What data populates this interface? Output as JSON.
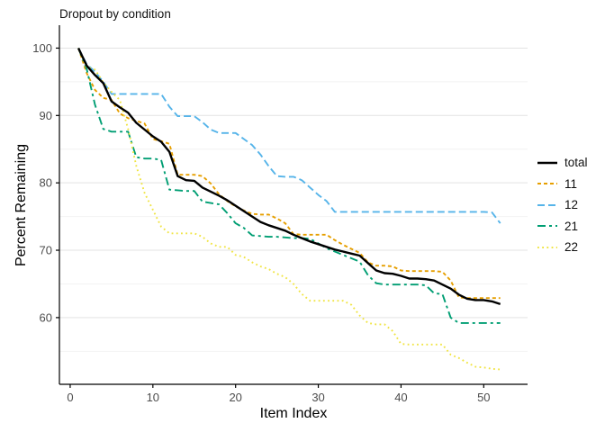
{
  "chart_data": {
    "type": "line",
    "title": "Dropout by condition",
    "xlabel": "Item Index",
    "ylabel": "Percent Remaining",
    "x_ticks": [
      0,
      10,
      20,
      30,
      40,
      50
    ],
    "y_ticks_major": [
      60,
      70,
      80,
      90,
      100
    ],
    "y_ticks_minor": [
      55,
      65,
      75,
      85,
      95
    ],
    "xlim": [
      -1.3,
      55.3
    ],
    "ylim": [
      50.1,
      103.4
    ],
    "grid": "horizontal-only",
    "legend_position": "right",
    "axis_color": "#000000",
    "tick_label_color": "#4d4d4d",
    "grid_major_color": "#e3e3e3",
    "grid_minor_color": "#f2f2f2",
    "x": [
      1,
      2,
      3,
      4,
      5,
      6,
      7,
      8,
      9,
      10,
      11,
      12,
      13,
      14,
      15,
      16,
      17,
      18,
      19,
      20,
      21,
      22,
      23,
      24,
      25,
      26,
      27,
      28,
      29,
      30,
      31,
      32,
      33,
      34,
      35,
      36,
      37,
      38,
      39,
      40,
      41,
      42,
      43,
      44,
      45,
      46,
      47,
      48,
      49,
      50,
      51,
      52
    ],
    "series": [
      {
        "name": "11",
        "color": "#E69F00",
        "dash": "4 3",
        "width": 1.9,
        "values": [
          100,
          96.3,
          93.8,
          92.6,
          92.3,
          90.3,
          89.6,
          89.2,
          88.8,
          86.5,
          86.2,
          85.8,
          81.2,
          81.2,
          81.2,
          81.0,
          79.9,
          78.3,
          77.3,
          76.5,
          75.9,
          75.4,
          75.3,
          75.3,
          74.7,
          74.0,
          72.4,
          72.3,
          72.3,
          72.3,
          72.3,
          71.5,
          70.8,
          70.2,
          69.6,
          68.2,
          67.7,
          67.7,
          67.6,
          67.0,
          66.9,
          66.9,
          66.9,
          66.9,
          66.8,
          65.5,
          63.0,
          62.9,
          62.9,
          62.9,
          62.9,
          62.9
        ]
      },
      {
        "name": "12",
        "color": "#56B4E9",
        "dash": "8 4",
        "width": 1.9,
        "values": [
          100,
          97.6,
          96.5,
          95.0,
          93.2,
          93.2,
          93.2,
          93.2,
          93.2,
          93.2,
          93.2,
          91.3,
          89.9,
          89.9,
          89.9,
          89.0,
          87.9,
          87.4,
          87.4,
          87.4,
          86.5,
          85.6,
          84.2,
          82.5,
          81.0,
          80.9,
          80.9,
          80.4,
          79.3,
          78.2,
          77.3,
          75.7,
          75.7,
          75.7,
          75.7,
          75.7,
          75.7,
          75.7,
          75.7,
          75.7,
          75.7,
          75.7,
          75.7,
          75.7,
          75.7,
          75.7,
          75.7,
          75.7,
          75.7,
          75.7,
          75.6,
          74.0
        ]
      },
      {
        "name": "21",
        "color": "#009E73",
        "dash": "9 4 3 4",
        "width": 1.9,
        "values": [
          100,
          96.9,
          91.6,
          88.0,
          87.6,
          87.6,
          87.6,
          83.8,
          83.6,
          83.6,
          83.4,
          79.0,
          78.9,
          78.8,
          78.8,
          77.2,
          77.0,
          76.8,
          75.5,
          74.0,
          73.3,
          72.2,
          72.1,
          72.0,
          72.0,
          71.9,
          71.8,
          71.8,
          71.7,
          71.0,
          70.3,
          69.8,
          69.3,
          68.8,
          68.3,
          66.3,
          65.1,
          64.9,
          64.9,
          64.9,
          64.9,
          64.9,
          64.8,
          63.6,
          63.5,
          60.0,
          59.2,
          59.2,
          59.2,
          59.2,
          59.2,
          59.2
        ]
      },
      {
        "name": "22",
        "color": "#F0E442",
        "dash": "1.8 3.4",
        "width": 1.9,
        "values": [
          100,
          97.2,
          96.8,
          94.9,
          93.5,
          92.3,
          88.0,
          82.5,
          78.5,
          76.0,
          73.5,
          72.5,
          72.5,
          72.5,
          72.5,
          72.0,
          71.0,
          70.5,
          70.5,
          69.3,
          69.0,
          68.2,
          67.6,
          67.2,
          66.5,
          66.0,
          65.0,
          63.5,
          62.5,
          62.5,
          62.5,
          62.5,
          62.5,
          61.9,
          60.3,
          59.2,
          59.0,
          59.0,
          58.0,
          56.1,
          56.0,
          56.0,
          56.0,
          56.0,
          56.0,
          54.5,
          54.0,
          53.3,
          52.7,
          52.6,
          52.4,
          52.3
        ]
      },
      {
        "name": "total",
        "color": "#000000",
        "dash": "",
        "width": 2.4,
        "values": [
          100,
          97.4,
          96.0,
          94.8,
          92.1,
          91.2,
          90.4,
          88.9,
          87.9,
          86.9,
          86.1,
          84.6,
          81.0,
          80.4,
          80.3,
          79.3,
          78.7,
          78.1,
          77.4,
          76.6,
          75.8,
          75.0,
          74.2,
          73.7,
          73.3,
          72.9,
          72.3,
          71.8,
          71.3,
          70.9,
          70.5,
          70.1,
          69.8,
          69.5,
          69.2,
          68.1,
          67.0,
          66.6,
          66.5,
          66.2,
          65.8,
          65.8,
          65.7,
          65.5,
          64.9,
          64.3,
          63.4,
          62.8,
          62.6,
          62.6,
          62.4,
          62.0
        ]
      }
    ],
    "legend_order": [
      "total",
      "11",
      "12",
      "21",
      "22"
    ]
  }
}
